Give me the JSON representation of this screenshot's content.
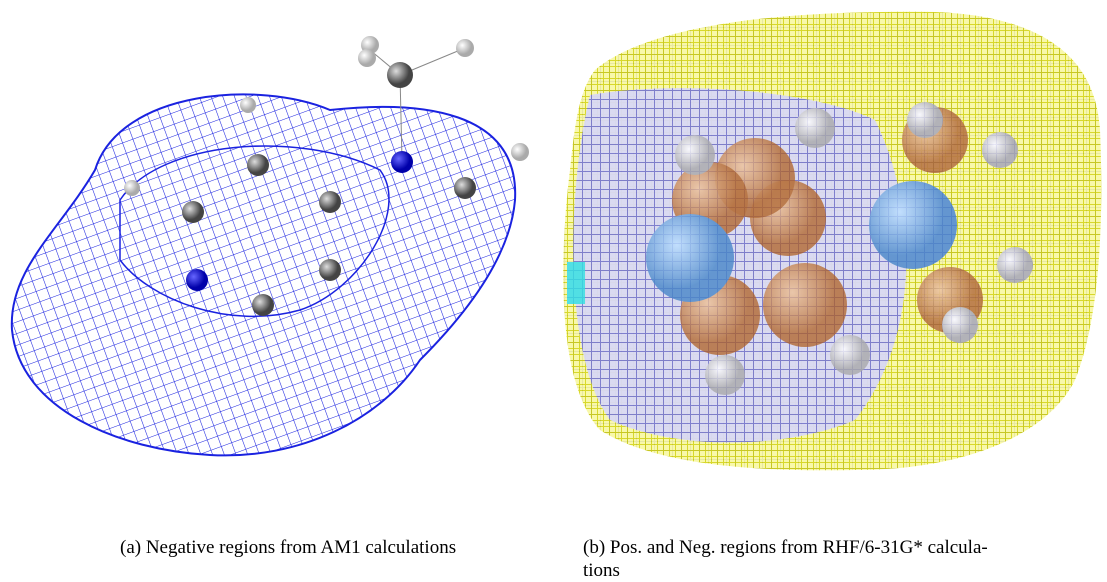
{
  "figure": {
    "subfigures": [
      {
        "caption": [
          "(a) Negative regions from AM1 calculations"
        ]
      },
      {
        "caption": [
          "(b) Pos. and Neg. regions from RHF/6-31G* calcula-",
          "tions"
        ]
      }
    ]
  }
}
